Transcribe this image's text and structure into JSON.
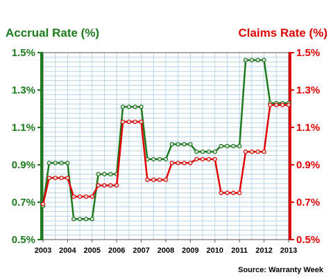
{
  "chart_data": {
    "type": "line",
    "x_ticks": [
      "2003",
      "2004",
      "2005",
      "2006",
      "2007",
      "2008",
      "2009",
      "2010",
      "2011",
      "2012",
      "2013"
    ],
    "left_axis": {
      "label": "Accrual Rate (%)",
      "tick_labels": [
        "1.5%",
        "1.3%",
        "1.1%",
        "0.9%",
        "0.7%",
        "0.5%"
      ],
      "range": [
        0.5,
        1.5
      ]
    },
    "right_axis": {
      "label": "Claims Rate (%)",
      "tick_labels": [
        "1.5%",
        "1.3%",
        "1.1%",
        "0.9%",
        "0.7%",
        "0.5%"
      ],
      "range": [
        0.5,
        1.5
      ]
    },
    "xlim": [
      2003,
      2013
    ],
    "grid": true,
    "series": [
      {
        "axis": "left",
        "color": "#1b7a1b",
        "points": [
          [
            2003.0,
            0.68
          ],
          [
            2003.25,
            0.91
          ],
          [
            2003.5,
            0.91
          ],
          [
            2003.75,
            0.91
          ],
          [
            2004.0,
            0.91
          ],
          [
            2004.25,
            0.61
          ],
          [
            2004.5,
            0.61
          ],
          [
            2004.75,
            0.61
          ],
          [
            2005.0,
            0.61
          ],
          [
            2005.25,
            0.85
          ],
          [
            2005.5,
            0.85
          ],
          [
            2005.75,
            0.85
          ],
          [
            2006.0,
            0.85
          ],
          [
            2006.25,
            1.21
          ],
          [
            2006.5,
            1.21
          ],
          [
            2006.75,
            1.21
          ],
          [
            2007.0,
            1.21
          ],
          [
            2007.25,
            0.93
          ],
          [
            2007.5,
            0.93
          ],
          [
            2007.75,
            0.93
          ],
          [
            2008.0,
            0.93
          ],
          [
            2008.25,
            1.01
          ],
          [
            2008.5,
            1.01
          ],
          [
            2008.75,
            1.01
          ],
          [
            2009.0,
            1.01
          ],
          [
            2009.25,
            0.97
          ],
          [
            2009.5,
            0.97
          ],
          [
            2009.75,
            0.97
          ],
          [
            2010.0,
            0.97
          ],
          [
            2010.25,
            1.0
          ],
          [
            2010.5,
            1.0
          ],
          [
            2010.75,
            1.0
          ],
          [
            2011.0,
            1.0
          ],
          [
            2011.25,
            1.46
          ],
          [
            2011.5,
            1.46
          ],
          [
            2011.75,
            1.46
          ],
          [
            2012.0,
            1.46
          ],
          [
            2012.25,
            1.23
          ],
          [
            2012.5,
            1.23
          ],
          [
            2012.75,
            1.23
          ],
          [
            2013.0,
            1.23
          ]
        ]
      },
      {
        "axis": "right",
        "color": "#e00000",
        "points": [
          [
            2003.0,
            0.69
          ],
          [
            2003.25,
            0.83
          ],
          [
            2003.5,
            0.83
          ],
          [
            2003.75,
            0.83
          ],
          [
            2004.0,
            0.83
          ],
          [
            2004.25,
            0.73
          ],
          [
            2004.5,
            0.73
          ],
          [
            2004.75,
            0.73
          ],
          [
            2005.0,
            0.73
          ],
          [
            2005.25,
            0.79
          ],
          [
            2005.5,
            0.79
          ],
          [
            2005.75,
            0.79
          ],
          [
            2006.0,
            0.79
          ],
          [
            2006.25,
            1.13
          ],
          [
            2006.5,
            1.13
          ],
          [
            2006.75,
            1.13
          ],
          [
            2007.0,
            1.13
          ],
          [
            2007.25,
            0.82
          ],
          [
            2007.5,
            0.82
          ],
          [
            2007.75,
            0.82
          ],
          [
            2008.0,
            0.82
          ],
          [
            2008.25,
            0.91
          ],
          [
            2008.5,
            0.91
          ],
          [
            2008.75,
            0.91
          ],
          [
            2009.0,
            0.91
          ],
          [
            2009.25,
            0.93
          ],
          [
            2009.5,
            0.93
          ],
          [
            2009.75,
            0.93
          ],
          [
            2010.0,
            0.93
          ],
          [
            2010.25,
            0.75
          ],
          [
            2010.5,
            0.75
          ],
          [
            2010.75,
            0.75
          ],
          [
            2011.0,
            0.75
          ],
          [
            2011.25,
            0.97
          ],
          [
            2011.5,
            0.97
          ],
          [
            2011.75,
            0.97
          ],
          [
            2012.0,
            0.97
          ],
          [
            2012.25,
            1.22
          ],
          [
            2012.5,
            1.22
          ],
          [
            2012.75,
            1.22
          ],
          [
            2013.0,
            1.22
          ]
        ]
      }
    ],
    "annotation": "Source: Warranty Week"
  },
  "colors": {
    "left_axis": "#1b7a1b",
    "right_axis": "#e00000",
    "grid": "#b8d4e8",
    "frame": "#555555"
  }
}
